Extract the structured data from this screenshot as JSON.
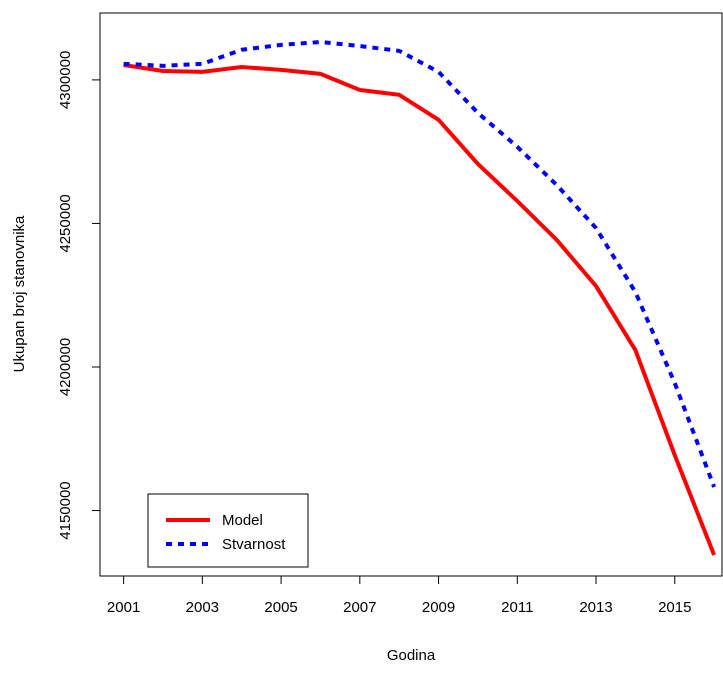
{
  "chart_data": {
    "type": "line",
    "xlabel": "Godina",
    "ylabel": "Ukupan broj stanovnika",
    "x": [
      2001,
      2002,
      2003,
      2004,
      2005,
      2006,
      2007,
      2008,
      2009,
      2010,
      2011,
      2012,
      2013,
      2014,
      2015,
      2016
    ],
    "series": [
      {
        "name": "Model",
        "color": "#ff0000",
        "dash": false,
        "values": [
          4305200,
          4303100,
          4302800,
          4304500,
          4303500,
          4302100,
          4296500,
          4294800,
          4286100,
          4270700,
          4257800,
          4244300,
          4228200,
          4205900,
          4169300,
          4134500
        ]
      },
      {
        "name": "Stvarnost",
        "color": "#0000ff",
        "dash": true,
        "values": [
          4305600,
          4304900,
          4305600,
          4310500,
          4312200,
          4313200,
          4311800,
          4310100,
          4302800,
          4288500,
          4276700,
          4263400,
          4248400,
          4226100,
          4194400,
          4158200
        ]
      }
    ],
    "xlim": [
      2000.4,
      2016.2
    ],
    "xticks": [
      2001,
      2003,
      2005,
      2007,
      2009,
      2011,
      2013,
      2015
    ],
    "ylim": [
      4127200,
      4323300
    ],
    "yticks": [
      4150000,
      4200000,
      4250000,
      4300000
    ],
    "legend": "bottom-left"
  }
}
